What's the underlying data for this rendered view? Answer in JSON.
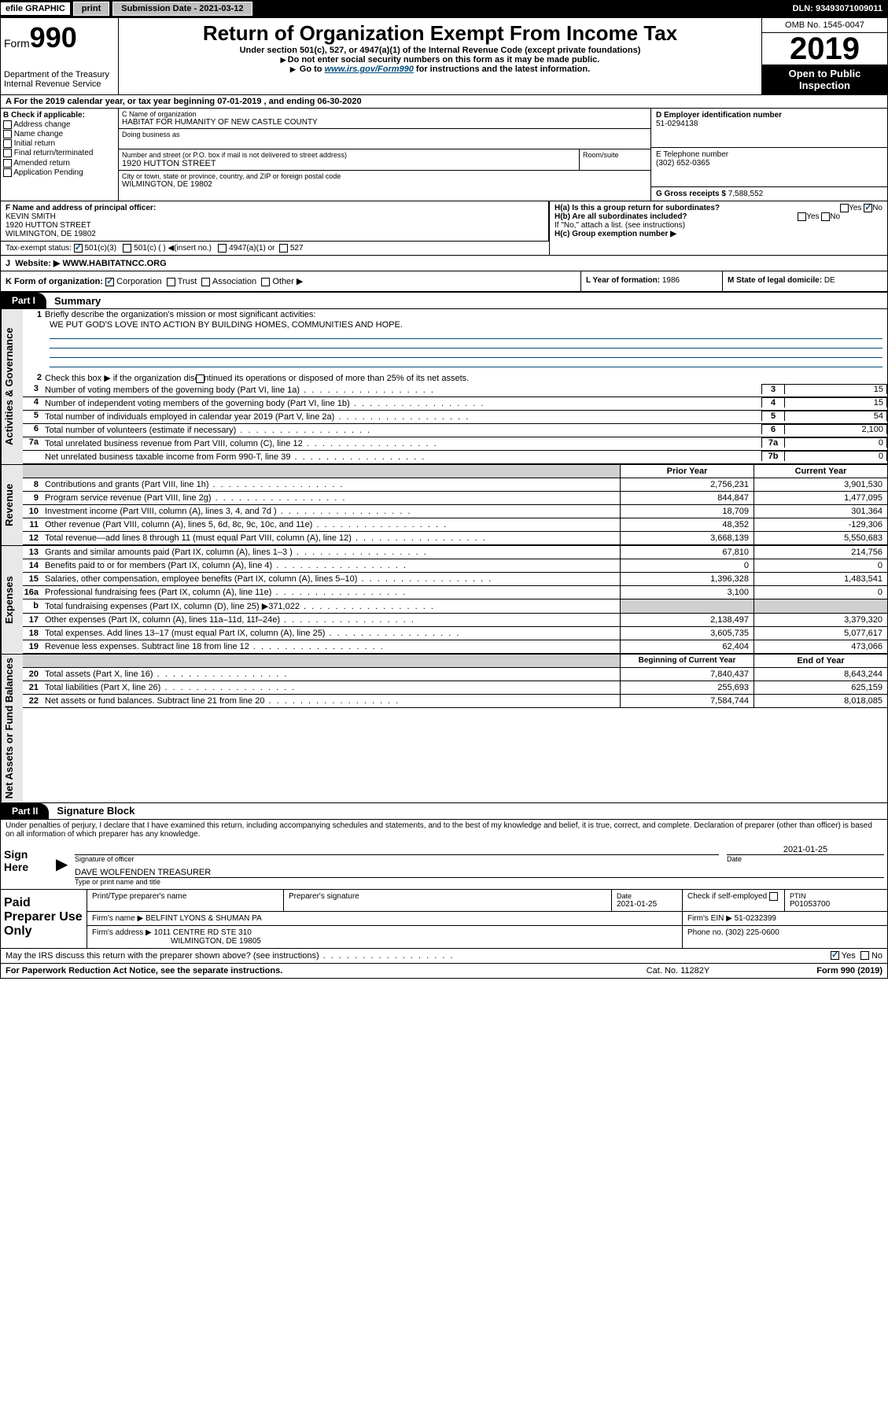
{
  "topbar": {
    "efile": "efile GRAPHIC",
    "print": "print",
    "submission": "Submission Date - 2021-03-12",
    "dln": "DLN: 93493071009011"
  },
  "header": {
    "form_prefix": "Form",
    "form_num": "990",
    "dept": "Department of the Treasury\nInternal Revenue Service",
    "title": "Return of Organization Exempt From Income Tax",
    "sub1": "Under section 501(c), 527, or 4947(a)(1) of the Internal Revenue Code (except private foundations)",
    "sub2": "Do not enter social security numbers on this form as it may be made public.",
    "sub3_pre": "Go to ",
    "sub3_link": "www.irs.gov/Form990",
    "sub3_post": " for instructions and the latest information.",
    "omb": "OMB No. 1545-0047",
    "year": "2019",
    "open": "Open to Public Inspection"
  },
  "rowA": "A  For the 2019 calendar year, or tax year beginning 07-01-2019    , and ending 06-30-2020",
  "colB": {
    "hdr": "B Check if applicable:",
    "opts": [
      "Address change",
      "Name change",
      "Initial return",
      "Final return/terminated",
      "Amended return",
      "Application Pending"
    ]
  },
  "colC": {
    "name_lbl": "C Name of organization",
    "name": "HABITAT FOR HUMANITY OF NEW CASTLE COUNTY",
    "dba_lbl": "Doing business as",
    "addr_lbl": "Number and street (or P.O. box if mail is not delivered to street address)",
    "addr": "1920 HUTTON STREET",
    "room_lbl": "Room/suite",
    "city_lbl": "City or town, state or province, country, and ZIP or foreign postal code",
    "city": "WILMINGTON, DE  19802"
  },
  "colD": {
    "ein_lbl": "D Employer identification number",
    "ein": "51-0294138",
    "tel_lbl": "E Telephone number",
    "tel": "(302) 652-0365",
    "gross_lbl": "G Gross receipts $ ",
    "gross": "7,588,552"
  },
  "rowF": {
    "lbl": "F Name and address of principal officer:",
    "name": "KEVIN SMITH",
    "addr1": "1920 HUTTON STREET",
    "addr2": "WILMINGTON, DE  19802",
    "tax_lbl": "Tax-exempt status:",
    "c3": "501(c)(3)",
    "cother": "501(c) (  ) ◀(insert no.)",
    "c4947": "4947(a)(1) or",
    "c527": "527"
  },
  "rowH": {
    "a": "H(a)  Is this a group return for subordinates?",
    "b": "H(b)  Are all subordinates included?",
    "b_note": "If \"No,\" attach a list. (see instructions)",
    "c": "H(c)  Group exemption number ▶",
    "yes": "Yes",
    "no": "No"
  },
  "rowJ": {
    "lbl": "Website: ▶",
    "val": "WWW.HABITATNCC.ORG"
  },
  "rowK": "K Form of organization:",
  "rowK_opts": [
    "Corporation",
    "Trust",
    "Association",
    "Other ▶"
  ],
  "rowL": {
    "lbl": "L Year of formation:",
    "val": "1986"
  },
  "rowM": {
    "lbl": "M State of legal domicile:",
    "val": "DE"
  },
  "part1": {
    "tab": "Part I",
    "title": "Summary",
    "line1": "Briefly describe the organization's mission or most significant activities:",
    "mission": "WE PUT GOD'S LOVE INTO ACTION BY BUILDING HOMES, COMMUNITIES AND HOPE.",
    "line2": "Check this box ▶        if the organization discontinued its operations or disposed of more than 25% of its net assets.",
    "rows": [
      {
        "n": "3",
        "d": "Number of voting members of the governing body (Part VI, line 1a)",
        "box": "3",
        "v": "15"
      },
      {
        "n": "4",
        "d": "Number of independent voting members of the governing body (Part VI, line 1b)",
        "box": "4",
        "v": "15"
      },
      {
        "n": "5",
        "d": "Total number of individuals employed in calendar year 2019 (Part V, line 2a)",
        "box": "5",
        "v": "54"
      },
      {
        "n": "6",
        "d": "Total number of volunteers (estimate if necessary)",
        "box": "6",
        "v": "2,100"
      },
      {
        "n": "7a",
        "d": "Total unrelated business revenue from Part VIII, column (C), line 12",
        "box": "7a",
        "v": "0"
      },
      {
        "n": "",
        "d": "Net unrelated business taxable income from Form 990-T, line 39",
        "box": "7b",
        "v": "0"
      }
    ],
    "hdr_prior": "Prior Year",
    "hdr_curr": "Current Year",
    "rev": [
      {
        "n": "8",
        "d": "Contributions and grants (Part VIII, line 1h)",
        "p": "2,756,231",
        "c": "3,901,530"
      },
      {
        "n": "9",
        "d": "Program service revenue (Part VIII, line 2g)",
        "p": "844,847",
        "c": "1,477,095"
      },
      {
        "n": "10",
        "d": "Investment income (Part VIII, column (A), lines 3, 4, and 7d )",
        "p": "18,709",
        "c": "301,364"
      },
      {
        "n": "11",
        "d": "Other revenue (Part VIII, column (A), lines 5, 6d, 8c, 9c, 10c, and 11e)",
        "p": "48,352",
        "c": "-129,306"
      },
      {
        "n": "12",
        "d": "Total revenue—add lines 8 through 11 (must equal Part VIII, column (A), line 12)",
        "p": "3,668,139",
        "c": "5,550,683"
      }
    ],
    "exp": [
      {
        "n": "13",
        "d": "Grants and similar amounts paid (Part IX, column (A), lines 1–3 )",
        "p": "67,810",
        "c": "214,756"
      },
      {
        "n": "14",
        "d": "Benefits paid to or for members (Part IX, column (A), line 4)",
        "p": "0",
        "c": "0"
      },
      {
        "n": "15",
        "d": "Salaries, other compensation, employee benefits (Part IX, column (A), lines 5–10)",
        "p": "1,396,328",
        "c": "1,483,541"
      },
      {
        "n": "16a",
        "d": "Professional fundraising fees (Part IX, column (A), line 11e)",
        "p": "3,100",
        "c": "0"
      },
      {
        "n": "b",
        "d": "Total fundraising expenses (Part IX, column (D), line 25) ▶371,022",
        "p": "",
        "c": "",
        "gray": true
      },
      {
        "n": "17",
        "d": "Other expenses (Part IX, column (A), lines 11a–11d, 11f–24e)",
        "p": "2,138,497",
        "c": "3,379,320"
      },
      {
        "n": "18",
        "d": "Total expenses. Add lines 13–17 (must equal Part IX, column (A), line 25)",
        "p": "3,605,735",
        "c": "5,077,617"
      },
      {
        "n": "19",
        "d": "Revenue less expenses. Subtract line 18 from line 12",
        "p": "62,404",
        "c": "473,066"
      }
    ],
    "hdr_beg": "Beginning of Current Year",
    "hdr_end": "End of Year",
    "net": [
      {
        "n": "20",
        "d": "Total assets (Part X, line 16)",
        "p": "7,840,437",
        "c": "8,643,244"
      },
      {
        "n": "21",
        "d": "Total liabilities (Part X, line 26)",
        "p": "255,693",
        "c": "625,159"
      },
      {
        "n": "22",
        "d": "Net assets or fund balances. Subtract line 21 from line 20",
        "p": "7,584,744",
        "c": "8,018,085"
      }
    ]
  },
  "side_labels": {
    "gov": "Activities & Governance",
    "rev": "Revenue",
    "exp": "Expenses",
    "net": "Net Assets or Fund Balances"
  },
  "part2": {
    "tab": "Part II",
    "title": "Signature Block",
    "decl": "Under penalties of perjury, I declare that I have examined this return, including accompanying schedules and statements, and to the best of my knowledge and belief, it is true, correct, and complete. Declaration of preparer (other than officer) is based on all information of which preparer has any knowledge.",
    "sign_here": "Sign Here",
    "sig_officer": "Signature of officer",
    "sig_date": "2021-01-25",
    "date_lbl": "Date",
    "officer_name": "DAVE WOLFENDEN  TREASURER",
    "name_title_lbl": "Type or print name and title",
    "paid": "Paid Preparer Use Only",
    "prep_name_lbl": "Print/Type preparer's name",
    "prep_sig_lbl": "Preparer's signature",
    "prep_date_lbl": "Date",
    "prep_date": "2021-01-25",
    "check_self": "Check          if self-employed",
    "ptin_lbl": "PTIN",
    "ptin": "P01053700",
    "firm_name_lbl": "Firm's name     ▶",
    "firm_name": "BELFINT LYONS & SHUMAN PA",
    "firm_ein_lbl": "Firm's EIN ▶",
    "firm_ein": "51-0232399",
    "firm_addr_lbl": "Firm's address  ▶",
    "firm_addr1": "1011 CENTRE RD STE 310",
    "firm_addr2": "WILMINGTON, DE  19805",
    "phone_lbl": "Phone no.",
    "phone": "(302) 225-0600",
    "discuss": "May the IRS discuss this return with the preparer shown above? (see instructions)",
    "yes": "Yes",
    "no": "No"
  },
  "footer": {
    "pra": "For Paperwork Reduction Act Notice, see the separate instructions.",
    "cat": "Cat. No. 11282Y",
    "form": "Form 990 (2019)"
  }
}
